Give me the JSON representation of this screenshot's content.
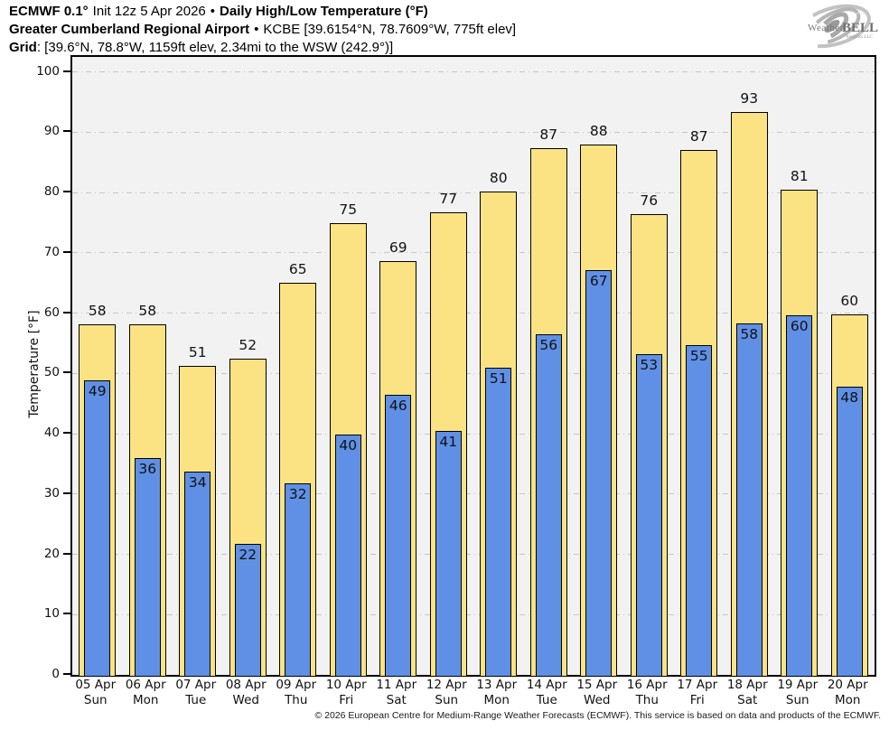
{
  "header": {
    "line1": {
      "model": "ECMWF 0.1°",
      "init": "Init 12z 5 Apr 2026",
      "sep": "•",
      "title": "Daily High/Low Temperature (°F)"
    },
    "line2": {
      "station": "Greater Cumberland Regional Airport",
      "sep": "•",
      "details": "KCBE [39.6154°N, 78.7609°W, 775ft elev]"
    },
    "line3": {
      "label": "Grid",
      "details": ": [39.6°N, 78.8°W, 1159ft elev, 2.34mi to the WSW (242.9°)]"
    }
  },
  "logo": {
    "part1": "Weather",
    "part2": "BELL",
    "part3": "Analytics LLC"
  },
  "chart_data": {
    "type": "bar",
    "title": "Daily High/Low Temperature (°F)",
    "ylabel": "Temperature [°F]",
    "ylim": [
      0,
      102.5
    ],
    "yticks": [
      0,
      10,
      20,
      30,
      40,
      50,
      60,
      70,
      80,
      90,
      100
    ],
    "grid": "horizontal dash-dot gridlines at every 10 °F",
    "legend_position": "none",
    "categories": [
      "05 Apr",
      "06 Apr",
      "07 Apr",
      "08 Apr",
      "09 Apr",
      "10 Apr",
      "11 Apr",
      "12 Apr",
      "13 Apr",
      "14 Apr",
      "15 Apr",
      "16 Apr",
      "17 Apr",
      "18 Apr",
      "19 Apr",
      "20 Apr"
    ],
    "weekdays": [
      "Sun",
      "Mon",
      "Tue",
      "Wed",
      "Thu",
      "Fri",
      "Sat",
      "Sun",
      "Mon",
      "Tue",
      "Wed",
      "Thu",
      "Fri",
      "Sat",
      "Sun",
      "Mon"
    ],
    "series": [
      {
        "name": "High",
        "color": "#fbe384",
        "labels": [
          58,
          58,
          51,
          52,
          65,
          75,
          69,
          77,
          80,
          87,
          88,
          76,
          87,
          93,
          81,
          60
        ],
        "values": [
          58.2,
          58.1,
          51.2,
          52.4,
          65.1,
          74.9,
          68.7,
          76.7,
          80.2,
          87.3,
          87.9,
          76.4,
          87.0,
          93.4,
          80.5,
          59.8
        ]
      },
      {
        "name": "Low",
        "color": "#6090e6",
        "labels": [
          49,
          36,
          34,
          22,
          32,
          40,
          46,
          41,
          51,
          56,
          67,
          53,
          55,
          58,
          60,
          48
        ],
        "values": [
          48.9,
          35.9,
          33.7,
          21.7,
          31.8,
          39.8,
          46.4,
          40.5,
          50.9,
          56.5,
          67.2,
          53.2,
          54.7,
          58.3,
          59.7,
          47.8
        ]
      }
    ]
  },
  "footer": {
    "copyright": "© 2026 European Centre for Medium-Range Weather Forecasts (ECMWF). This service is based on data and products of the ECMWF."
  },
  "colors": {
    "high_bar": "#fbe384",
    "low_bar": "#6090e6",
    "bar_border": "#000000",
    "plot_background": "#f2f2f2",
    "gridline": "#c7c7c7",
    "page_background": "#ffffff"
  }
}
